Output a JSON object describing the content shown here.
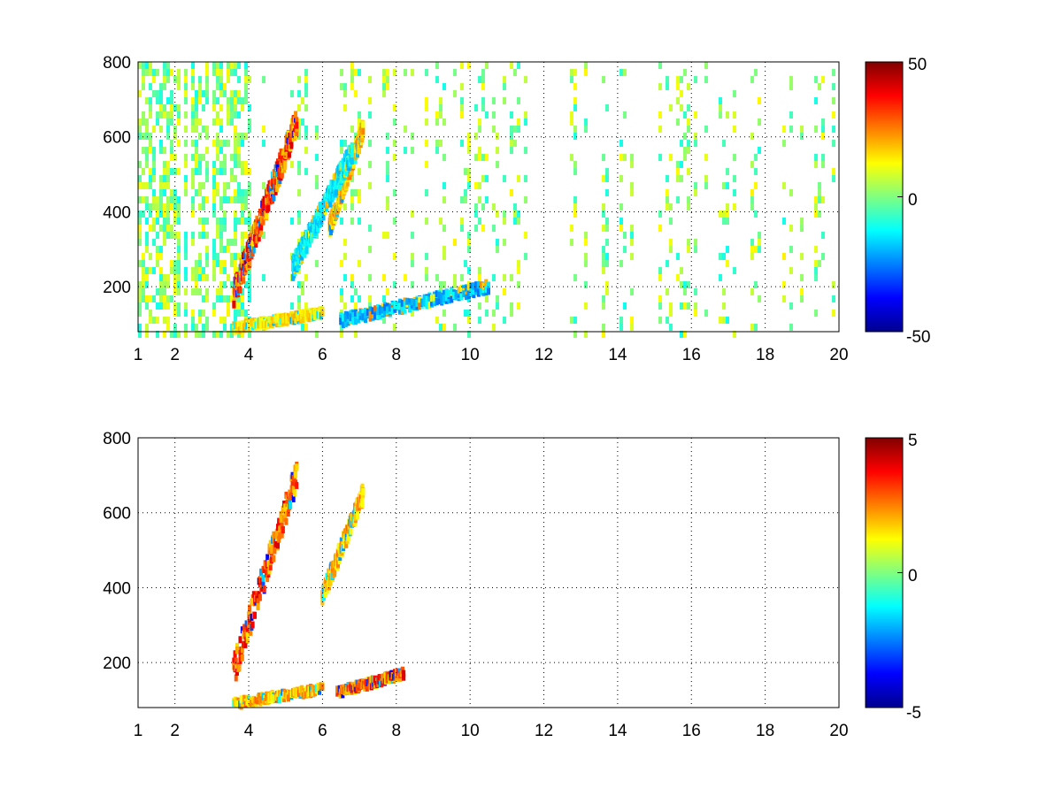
{
  "chart_data": [
    {
      "type": "heatmap",
      "title": "",
      "xlabel": "",
      "ylabel": "",
      "xlim": [
        1,
        20
      ],
      "ylim": [
        80,
        800
      ],
      "x_ticks": [
        "1",
        "2",
        "4",
        "6",
        "8",
        "10",
        "12",
        "14",
        "16",
        "18",
        "20"
      ],
      "y_ticks": [
        "200",
        "400",
        "600",
        "800"
      ],
      "grid": true,
      "colormap": "jet",
      "colorbar": {
        "min": -50,
        "max": 50,
        "ticks": [
          "50",
          "0",
          "-50"
        ]
      },
      "features": [
        {
          "name": "rising-warm-ridge",
          "x_range": [
            3.6,
            5.3
          ],
          "y_range": [
            180,
            640
          ],
          "value": 30
        },
        {
          "name": "rising-warm-ridge-2",
          "x_range": [
            6.2,
            7.1
          ],
          "y_range": [
            360,
            620
          ],
          "value": 20
        },
        {
          "name": "cool-band",
          "x_range": [
            5.2,
            6.8
          ],
          "y_range": [
            250,
            560
          ],
          "value": -15
        },
        {
          "name": "low-cool-band",
          "x_range": [
            6.5,
            10.5
          ],
          "y_range": [
            110,
            200
          ],
          "value": -20
        },
        {
          "name": "low-warm-band",
          "x_range": [
            3.6,
            6.0
          ],
          "y_range": [
            90,
            130
          ],
          "value": 15
        }
      ]
    },
    {
      "type": "heatmap",
      "title": "",
      "xlabel": "",
      "ylabel": "",
      "xlim": [
        1,
        20
      ],
      "ylim": [
        80,
        800
      ],
      "x_ticks": [
        "1",
        "2",
        "4",
        "6",
        "8",
        "10",
        "12",
        "14",
        "16",
        "18",
        "20"
      ],
      "y_ticks": [
        "200",
        "400",
        "600",
        "800"
      ],
      "grid": true,
      "colormap": "jet",
      "colorbar": {
        "min": -5,
        "max": 5,
        "ticks": [
          "5",
          "0",
          "-5"
        ]
      },
      "features": [
        {
          "name": "rising-ridge",
          "x_range": [
            3.6,
            5.3
          ],
          "y_range": [
            180,
            700
          ],
          "value": 3
        },
        {
          "name": "rising-ridge-2",
          "x_range": [
            6.0,
            7.1
          ],
          "y_range": [
            380,
            650
          ],
          "value": 2
        },
        {
          "name": "low-band",
          "x_range": [
            6.4,
            8.2
          ],
          "y_range": [
            120,
            170
          ],
          "value": 3
        },
        {
          "name": "low-warm-band",
          "x_range": [
            3.6,
            6.0
          ],
          "y_range": [
            90,
            130
          ],
          "value": 2
        }
      ]
    }
  ]
}
